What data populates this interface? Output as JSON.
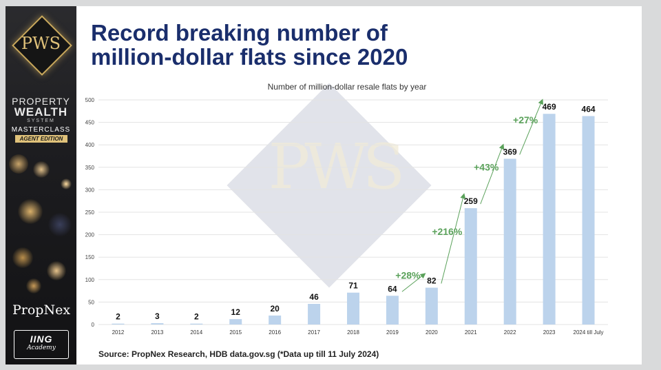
{
  "slide": {
    "title_line1": "Record breaking number of",
    "title_line2": "million-dollar flats since 2020",
    "source": "Source: PropNex Research, HDB data.gov.sg (*Data up till 11 July 2024)"
  },
  "sidebar": {
    "logo_text": "PWS",
    "property": "PROPERTY",
    "wealth": "WEALTH",
    "system": "SYSTEM",
    "masterclass": "MASTERCLASS",
    "agent_edition": "AGENT EDITION",
    "propnex": "PropNex",
    "ing": "IING",
    "academy": "Academy"
  },
  "watermark": {
    "text": "PWS"
  },
  "colors": {
    "bar": "#bcd3ec",
    "title": "#1a2e6c",
    "growth": "#5aa15a",
    "grid": "#e3e3e3"
  },
  "chart_data": {
    "type": "bar",
    "title": "Number of million-dollar resale flats by year",
    "categories": [
      "2012",
      "2013",
      "2014",
      "2015",
      "2016",
      "2017",
      "2018",
      "2019",
      "2020",
      "2021",
      "2022",
      "2023",
      "2024 till July"
    ],
    "values": [
      2,
      3,
      2,
      12,
      20,
      46,
      71,
      64,
      82,
      259,
      369,
      469,
      464
    ],
    "ylim": [
      0,
      500
    ],
    "yticks": [
      0,
      50,
      100,
      150,
      200,
      250,
      300,
      350,
      400,
      450,
      500
    ],
    "grid": true,
    "annotations": [
      {
        "label": "+28%",
        "from": "2019",
        "to": "2020"
      },
      {
        "label": "+216%",
        "from": "2020",
        "to": "2021"
      },
      {
        "label": "+43%",
        "from": "2021",
        "to": "2022"
      },
      {
        "label": "+27%",
        "from": "2022",
        "to": "2023"
      }
    ]
  }
}
